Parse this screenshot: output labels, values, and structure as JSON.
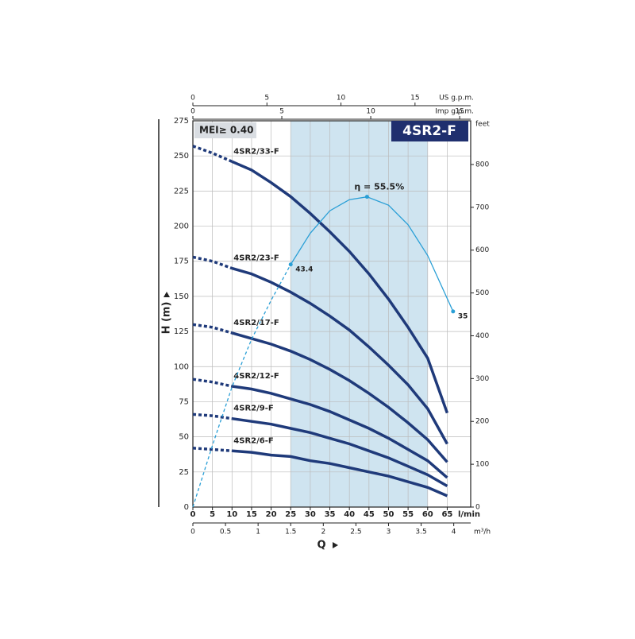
{
  "chart_data": {
    "type": "line",
    "title": "4SR2-F",
    "badge": "MEI≥ 0.40",
    "x_label": "Q",
    "x_unit": "l/min",
    "y_label": "H (m)",
    "xlim": [
      0,
      71
    ],
    "xticks": [
      0,
      5,
      10,
      15,
      20,
      25,
      30,
      35,
      40,
      45,
      50,
      55,
      60,
      65
    ],
    "ylim": [
      0,
      275
    ],
    "yticks": [
      0,
      25,
      50,
      75,
      100,
      125,
      150,
      175,
      200,
      225,
      250,
      275
    ],
    "y2_label": "feet",
    "y2lim": [
      0,
      902
    ],
    "y2ticks": [
      0,
      100,
      200,
      300,
      400,
      500,
      600,
      700,
      800
    ],
    "top_axes": [
      {
        "label": "US g.p.m.",
        "lim": [
          0,
          18.76
        ],
        "ticks": [
          0,
          5,
          10,
          15
        ]
      },
      {
        "label": "Imp g.p.m.",
        "lim": [
          0,
          15.62
        ],
        "ticks": [
          0,
          5,
          10,
          15
        ]
      }
    ],
    "bottom_axis": {
      "label": "m³/h",
      "lim": [
        0,
        4.26
      ],
      "ticks": [
        0,
        0.5,
        1,
        1.5,
        2,
        2.5,
        3,
        3.5,
        4
      ]
    },
    "highlight": {
      "from": 25,
      "to": 60,
      "color": "#cfe4f0"
    },
    "grid": true,
    "series": [
      {
        "name": "4SR2/33-F",
        "color": "#1f3a7a",
        "dash_until": 10,
        "x": [
          0,
          5,
          10,
          15,
          20,
          25,
          30,
          35,
          40,
          45,
          50,
          55,
          60,
          65
        ],
        "values": [
          257,
          252,
          246,
          240,
          231,
          221,
          209,
          196,
          182,
          166,
          148,
          128,
          106,
          67
        ]
      },
      {
        "name": "4SR2/23-F",
        "color": "#1f3a7a",
        "dash_until": 10,
        "x": [
          0,
          5,
          10,
          15,
          20,
          25,
          30,
          35,
          40,
          45,
          50,
          55,
          60,
          65
        ],
        "values": [
          178,
          175,
          170,
          166,
          160,
          153,
          145,
          136,
          126,
          114,
          101,
          87,
          70,
          45
        ]
      },
      {
        "name": "4SR2/17-F",
        "color": "#1f3a7a",
        "dash_until": 10,
        "x": [
          0,
          5,
          10,
          15,
          20,
          25,
          30,
          35,
          40,
          45,
          50,
          55,
          60,
          65
        ],
        "values": [
          130,
          128,
          124,
          120,
          116,
          111,
          105,
          98,
          90,
          81,
          71,
          60,
          48,
          32
        ]
      },
      {
        "name": "4SR2/12-F",
        "color": "#1f3a7a",
        "dash_until": 10,
        "x": [
          0,
          5,
          10,
          15,
          20,
          25,
          30,
          35,
          40,
          45,
          50,
          55,
          60,
          65
        ],
        "values": [
          91,
          89,
          86,
          84,
          81,
          77,
          73,
          68,
          62,
          56,
          49,
          41,
          33,
          21
        ]
      },
      {
        "name": "4SR2/9-F",
        "color": "#1f3a7a",
        "dash_until": 10,
        "x": [
          0,
          5,
          10,
          15,
          20,
          25,
          30,
          35,
          40,
          45,
          50,
          55,
          60,
          65
        ],
        "values": [
          66,
          65,
          63,
          61,
          59,
          56,
          53,
          49,
          45,
          40,
          35,
          29,
          23,
          15
        ]
      },
      {
        "name": "4SR2/6-F",
        "color": "#1f3a7a",
        "dash_until": 10,
        "x": [
          0,
          5,
          10,
          15,
          20,
          25,
          30,
          35,
          40,
          45,
          50,
          55,
          60,
          65
        ],
        "values": [
          42,
          41,
          40,
          39,
          37,
          36,
          33,
          31,
          28,
          25,
          22,
          18,
          14,
          8
        ]
      }
    ],
    "efficiency": {
      "color": "#2a9fd6",
      "dash_until": 25,
      "axis": "y3",
      "y3lim": [
        0,
        69.1
      ],
      "x": [
        0,
        5,
        10,
        15,
        20,
        25,
        30,
        35,
        40,
        44.5,
        50,
        55,
        60,
        66.5
      ],
      "values": [
        0,
        11,
        21.5,
        30,
        37,
        43.4,
        49,
        53,
        55,
        55.5,
        54,
        50.5,
        45,
        35
      ],
      "value_labels": [
        null,
        null,
        null,
        null,
        null,
        "43.4",
        null,
        null,
        null,
        "η = 55.5%",
        null,
        null,
        null,
        "35"
      ]
    }
  }
}
